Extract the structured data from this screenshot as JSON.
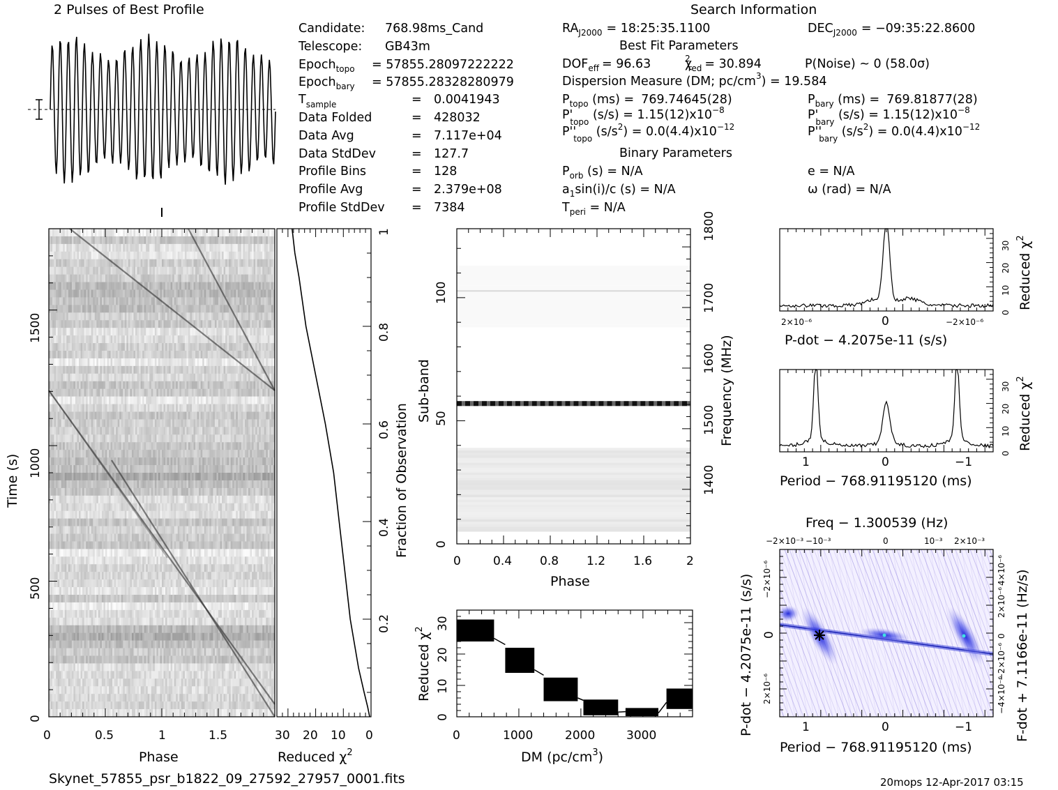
{
  "title_profile": "2 Pulses of Best Profile",
  "title_search": "Search Information",
  "filename": "Skynet_57855_psr_b1822_09_27592_27957_0001.fits",
  "footer_right": "20mops 12-Apr-2017 03:15",
  "candidate_info": [
    {
      "label": "Candidate:",
      "value": "768.98ms_Cand"
    },
    {
      "label": "Telescope:",
      "value": "GB43m"
    },
    {
      "label": "Epoch",
      "sub": "topo",
      "value": "= 57855.28097222222"
    },
    {
      "label": "Epoch",
      "sub": "bary",
      "value": "= 57855.28328280979"
    },
    {
      "label": "T",
      "sub": "sample",
      "value": "0.0041943"
    },
    {
      "label": "Data Folded",
      "value": "428032"
    },
    {
      "label": "Data Avg",
      "value": "7.117e+04"
    },
    {
      "label": "Data StdDev",
      "value": "127.7"
    },
    {
      "label": "Profile Bins",
      "value": "128"
    },
    {
      "label": "Profile Avg",
      "value": "2.379e+08"
    },
    {
      "label": "Profile StdDev",
      "value": "7384"
    }
  ],
  "search_info": {
    "ra_label": "RA",
    "ra_sub": "J2000",
    "ra_value": "= 18:25:35.1100",
    "dec_label": "DEC",
    "dec_sub": "J2000",
    "dec_value": "= −09:35:22.8600",
    "best_fit_title": "Best Fit Parameters",
    "dof_label": "DOF",
    "dof_sub": "eff",
    "dof_value": "= 96.63",
    "chi_label": "χ",
    "chi_sup": "2",
    "chi_sub": "red",
    "chi_value": "= 30.894",
    "pnoise": "P(Noise) ~ 0    (58.0σ)",
    "dm_text": "Dispersion Measure (DM; pc/cm",
    "dm_sup": "3",
    "dm_value": ") = 19.584",
    "ptopo_label": "P",
    "ptopo_sub": "topo",
    "ptopo_unit": " (ms) =",
    "ptopo_value": "769.74645(28)",
    "pbary_label": "P",
    "pbary_sub": "bary",
    "pbary_unit": " (ms) =",
    "pbary_value": "769.81877(28)",
    "pdtopo_label": "P'",
    "pdtopo_sub": "topo",
    "pdtopo_value": " (s/s) =  1.15(12)x10",
    "pdtopo_exp": "−8",
    "pdbary_label": "P'",
    "pdbary_sub": "bary",
    "pdbary_value": " (s/s) =  1.15(12)x10",
    "pdbary_exp": "−8",
    "pddtopo_label": "P''",
    "pddtopo_sub": "topo",
    "pddtopo_value": " (s/s",
    "pddtopo_sup": "2",
    "pddtopo_rest": ") = 0.0(4.4)x10",
    "pddtopo_exp": "−12",
    "pddbary_label": "P''",
    "pddbary_sub": "bary",
    "pddbary_value": " (s/s",
    "pddbary_sup": "2",
    "pddbary_rest": ") = 0.0(4.4)x10",
    "pddbary_exp": "−12",
    "binary_title": "Binary Parameters",
    "porb_label": "P",
    "porb_sub": "orb",
    "porb_value": " (s) = N/A",
    "e_value": "e = N/A",
    "a1_label": "a",
    "a1_sub": "1",
    "a1_value": "sin(i)/c (s) = N/A",
    "omega_value": "ω (rad) = N/A",
    "tperi_label": "T",
    "tperi_sub": "peri",
    "tperi_value": " = N/A"
  },
  "colors": {
    "ink": "#000000",
    "ppdot_low": "#ffffff",
    "ppdot_mid": "#b8b0f0",
    "ppdot_high": "#1820d8",
    "ppdot_peak": "#40e0e0"
  },
  "chart_data": [
    {
      "id": "profile",
      "type": "line",
      "title": "2 Pulses of Best Profile",
      "x_range": [
        0,
        2
      ],
      "pulses_per_phase": 14,
      "n_points": 256
    },
    {
      "id": "time_phase",
      "type": "heatmap",
      "xlabel": "Phase",
      "ylabel": "Time (s)",
      "xlim": [
        0,
        2
      ],
      "ylim": [
        0,
        1800
      ],
      "xticks": [
        "0",
        "0.5",
        "1",
        "1.5"
      ],
      "yticks": [
        "0",
        "500",
        "1000",
        "1500"
      ],
      "n_rows": 64,
      "n_cols": 128
    },
    {
      "id": "chi_vs_time",
      "type": "line",
      "xlabel": "Reduced χ²",
      "ylabel": "Fraction of Observation",
      "xlim": [
        34,
        0
      ],
      "ylim": [
        0,
        1
      ],
      "xticks": [
        "30",
        "20",
        "10",
        "0"
      ],
      "yticks": [
        "0.2",
        "0.4",
        "0.6",
        "0.8",
        "1"
      ],
      "fraction": [
        0,
        0.02,
        0.05,
        0.1,
        0.2,
        0.3,
        0.4,
        0.5,
        0.6,
        0.7,
        0.8,
        0.9,
        0.95,
        1.0
      ],
      "chi2": [
        0.5,
        1.2,
        2.5,
        4.5,
        7.5,
        9.5,
        11.5,
        13.5,
        16.5,
        20,
        23.5,
        26,
        27.5,
        28.5
      ]
    },
    {
      "id": "subband_phase",
      "type": "heatmap",
      "xlabel": "Phase",
      "ylabel": "Sub-band",
      "ylabel2": "Frequency (MHz)",
      "xlim": [
        0,
        2
      ],
      "ylim": [
        0,
        128
      ],
      "xticks": [
        "0",
        "0.4",
        "0.8",
        "1.2",
        "1.6",
        "2"
      ],
      "yticks": [
        "0",
        "50",
        "100"
      ],
      "y2ticks": [
        "1400",
        "1500",
        "1600",
        "1700",
        "1800"
      ],
      "y2lim": [
        1310,
        1830
      ],
      "bright_band": 57,
      "faint_band": 102
    },
    {
      "id": "dm_chi",
      "type": "line",
      "xlabel": "DM (pc/cm³)",
      "ylabel": "Reduced χ²",
      "xlim": [
        0,
        3800
      ],
      "ylim": [
        0,
        34
      ],
      "xticks": [
        "0",
        "1000",
        "2000",
        "3000"
      ],
      "yticks": [
        "0",
        "10",
        "20",
        "30"
      ],
      "steps": [
        {
          "from": 0,
          "to": 600,
          "lo": 24,
          "hi": 31
        },
        {
          "from": 780,
          "to": 1250,
          "lo": 14,
          "hi": 22
        },
        {
          "from": 1400,
          "to": 1950,
          "lo": 5,
          "hi": 12.5
        },
        {
          "from": 2040,
          "to": 2600,
          "lo": 0.5,
          "hi": 5.5
        },
        {
          "from": 2720,
          "to": 3250,
          "lo": 0.2,
          "hi": 2.8
        },
        {
          "from": 3380,
          "to": 3800,
          "lo": 2.5,
          "hi": 9
        }
      ]
    },
    {
      "id": "pdot_chi",
      "type": "line",
      "xlabel": "P-dot − 4.2075e-11 (s/s)",
      "ylabel": "Reduced χ²",
      "xlim": [
        2.9e-06,
        -2.9e-06
      ],
      "ylim": [
        0,
        34
      ],
      "xticks": [
        "2×10⁻⁶",
        "0",
        "−2×10⁻⁶"
      ],
      "yticks": [
        "0",
        "10",
        "20",
        "30"
      ],
      "peak_x": 0,
      "peak_y": 33
    },
    {
      "id": "period_chi",
      "type": "line",
      "xlabel": "Period − 768.91195120 (ms)",
      "ylabel": "Reduced χ²",
      "xlim": [
        1.3,
        -1.3
      ],
      "ylim": [
        0,
        34
      ],
      "xticks": [
        "1",
        "0",
        "−1"
      ],
      "yticks": [
        "0",
        "10",
        "20",
        "30"
      ],
      "peaks": [
        {
          "x": 0.86,
          "y": 32
        },
        {
          "x": 0.0,
          "y": 16
        },
        {
          "x": -0.86,
          "y": 32
        }
      ]
    },
    {
      "id": "p_pdot",
      "type": "heatmap",
      "title": "Freq − 1.300539 (Hz)",
      "xlabel": "Period − 768.91195120 (ms)",
      "ylabel": "P-dot − 4.2075e-11 (s/s)",
      "ylabel2": "F-dot + 7.1166e-11 (Hz/s)",
      "xlim": [
        1.3,
        -1.3
      ],
      "ylim": [
        2.9e-06,
        -2.9e-06
      ],
      "xticks": [
        "1",
        "0",
        "−1"
      ],
      "yticks": [
        "−2×10⁻⁶",
        "0",
        "2×10⁻⁶"
      ],
      "topticks": [
        "−2×10⁻³",
        "−10⁻³",
        "0",
        "10⁻³",
        "2×10⁻³"
      ],
      "rightticks": [
        "4×10⁻⁶",
        "2×10⁻⁶",
        "0",
        "−2×10⁻⁶",
        "−4×10⁻⁶"
      ]
    }
  ]
}
